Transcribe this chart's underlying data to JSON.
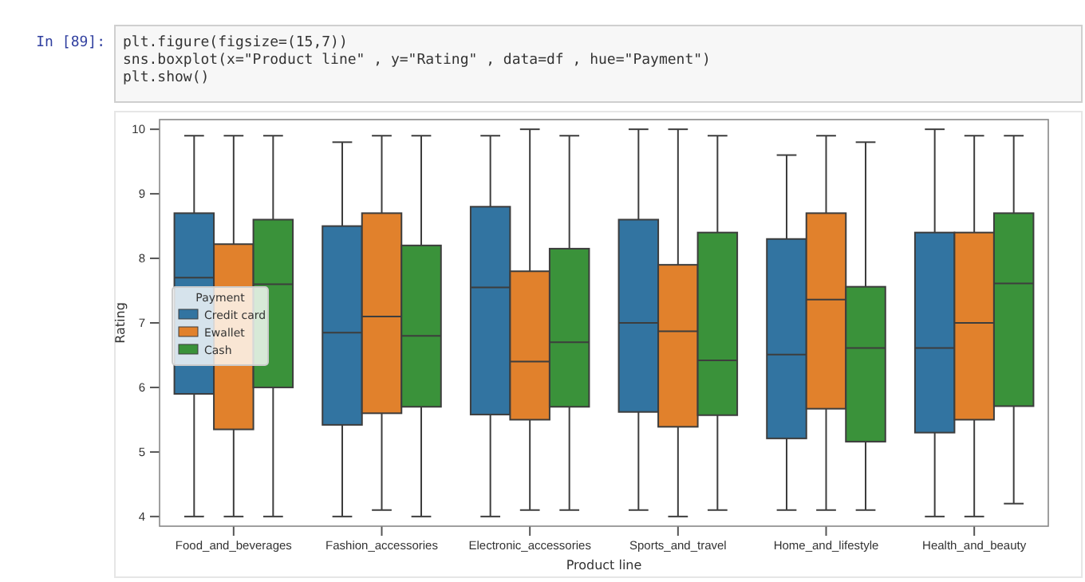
{
  "chart_data": {
    "type": "box",
    "xlabel": "Product line",
    "ylabel": "Rating",
    "legend_title": "Payment",
    "legend": "left",
    "grid": false,
    "annotations": [
      "In [89]:",
      "plt.figure(figsize=(15,7))",
      "sns.boxplot(x=\"Product line\" , y=\"Rating\" , data=df , hue=\"Payment\")",
      "plt.show()"
    ],
    "categories": [
      "Food_and_beverages",
      "Fashion_accessories",
      "Electronic_accessories",
      "Sports_and_travel",
      "Home_and_lifestyle",
      "Health_and_beauty"
    ],
    "ylim": [
      3.85,
      10.15
    ],
    "yticks": [
      4,
      5,
      6,
      7,
      8,
      9,
      10
    ],
    "series": [
      {
        "name": "Credit card",
        "color": "#3274a1",
        "boxes": [
          {
            "low": 4.0,
            "q1": 5.9,
            "q3": 8.7,
            "median": 7.7,
            "high": 9.9
          },
          {
            "low": 4.0,
            "q1": 5.42,
            "q3": 8.5,
            "median": 6.85,
            "high": 9.8
          },
          {
            "low": 4.0,
            "q1": 5.58,
            "q3": 8.8,
            "median": 7.55,
            "high": 9.9
          },
          {
            "low": 4.1,
            "q1": 5.62,
            "q3": 8.6,
            "median": 7.0,
            "high": 10.0
          },
          {
            "low": 4.1,
            "q1": 5.21,
            "q3": 8.3,
            "median": 6.51,
            "high": 9.6
          },
          {
            "low": 4.0,
            "q1": 5.3,
            "q3": 8.4,
            "median": 6.61,
            "high": 10.0
          }
        ]
      },
      {
        "name": "Ewallet",
        "color": "#e1812c",
        "boxes": [
          {
            "low": 4.0,
            "q1": 5.35,
            "q3": 8.22,
            "median": null,
            "high": 9.9
          },
          {
            "low": 4.1,
            "q1": 5.6,
            "q3": 8.7,
            "median": 7.1,
            "high": 9.9
          },
          {
            "low": 4.1,
            "q1": 5.5,
            "q3": 7.8,
            "median": 6.4,
            "high": 10.0
          },
          {
            "low": 4.0,
            "q1": 5.39,
            "q3": 7.9,
            "median": 6.87,
            "high": 10.0
          },
          {
            "low": 4.1,
            "q1": 5.67,
            "q3": 8.7,
            "median": 7.36,
            "high": 9.9
          },
          {
            "low": 4.0,
            "q1": 5.5,
            "q3": 8.4,
            "median": 7.0,
            "high": 9.9
          }
        ]
      },
      {
        "name": "Cash",
        "color": "#3a923a",
        "boxes": [
          {
            "low": 4.0,
            "q1": 6.0,
            "q3": 8.6,
            "median": 7.6,
            "high": 9.9
          },
          {
            "low": 4.0,
            "q1": 5.7,
            "q3": 8.2,
            "median": 6.8,
            "high": 9.9
          },
          {
            "low": 4.1,
            "q1": 5.7,
            "q3": 8.15,
            "median": 6.7,
            "high": 9.9
          },
          {
            "low": 4.1,
            "q1": 5.57,
            "q3": 8.4,
            "median": 6.42,
            "high": 9.9
          },
          {
            "low": 4.1,
            "q1": 5.16,
            "q3": 7.56,
            "median": 6.61,
            "high": 9.8
          },
          {
            "low": 4.2,
            "q1": 5.71,
            "q3": 8.7,
            "median": 7.61,
            "high": 9.9
          }
        ]
      }
    ]
  }
}
